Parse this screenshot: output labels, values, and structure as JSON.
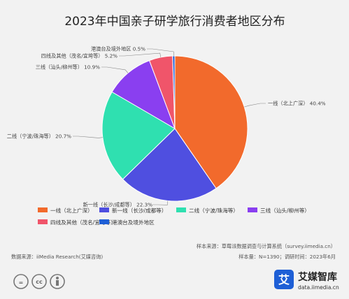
{
  "chart_data": {
    "type": "pie",
    "title": "2023年中国亲子研学旅行消费者地区分布",
    "slices": [
      {
        "label": "一线（北上广深）",
        "value": 40.4,
        "display": "一线（北上广深） 40.4%",
        "color": "#f26a2c"
      },
      {
        "label": "新一线（长沙/成都等）",
        "value": 22.3,
        "display": "新一线（长沙/成都等） 22.3%",
        "color": "#4f4fe0"
      },
      {
        "label": "二线（宁波/珠海等）",
        "value": 20.7,
        "display": "二线（宁波/珠海等） 20.7%",
        "color": "#2fe0b0"
      },
      {
        "label": "三线（汕头/柳州等）",
        "value": 10.9,
        "display": "三线（汕头/柳州等） 10.9%",
        "color": "#8a3ff0"
      },
      {
        "label": "四线及其他（茂名/宜垮等）",
        "value": 5.2,
        "display": "四线及其他（茂名/宜垮等） 5.2%",
        "color": "#f0556a"
      },
      {
        "label": "港澳台及境外地区",
        "value": 0.5,
        "display": "港澳台及境外地区 0.5%",
        "color": "#1e5fd6"
      }
    ],
    "legend_position": "bottom"
  },
  "footer": {
    "source": "数据来源：iiMedia Research(艾媒咨询)",
    "sample_source": "样本来源：草莓派数据调查与计算系统（survey.iimedia.cn）",
    "sample_size": "样本量：N=1390；调研时间：2023年6月"
  },
  "brand": {
    "logo_char": "艾",
    "name": "艾媒智库",
    "url": "data.iimedia.cn"
  },
  "license": {
    "cc": "cc",
    "eq": "="
  }
}
